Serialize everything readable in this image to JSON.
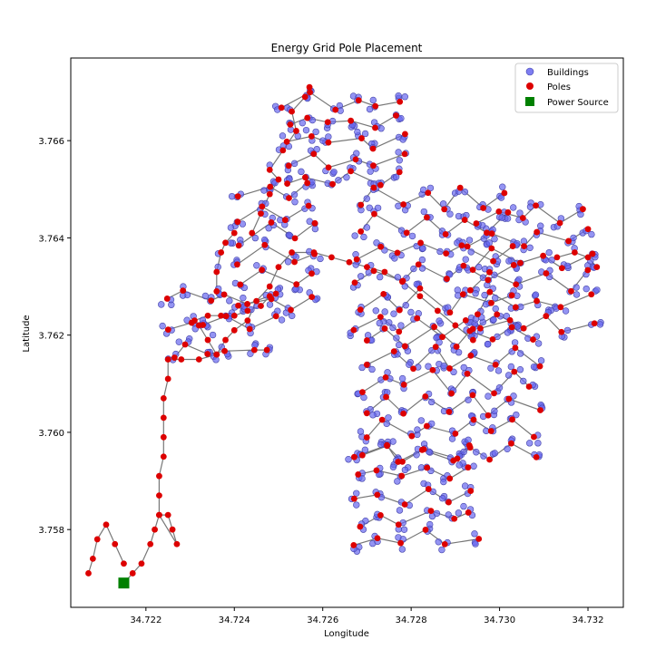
{
  "chart_data": {
    "type": "scatter",
    "title": "Energy Grid Pole Placement",
    "xlabel": "Longitude",
    "ylabel": "Latitude",
    "xlim": [
      34.7203,
      34.7328
    ],
    "ylim": [
      3.7564,
      3.7677
    ],
    "grid": false,
    "legend_position": "top-right",
    "x_ticks": [
      "34.722",
      "34.724",
      "34.726",
      "34.728",
      "34.730",
      "34.732"
    ],
    "x_tick_values": [
      34.722,
      34.724,
      34.726,
      34.728,
      34.73,
      34.732
    ],
    "y_ticks": [
      "3.758",
      "3.760",
      "3.762",
      "3.764",
      "3.766"
    ],
    "y_tick_values": [
      3.758,
      3.76,
      3.762,
      3.764,
      3.766
    ],
    "series": [
      {
        "name": "Buildings",
        "marker": "circle",
        "color": "#6666ee"
      },
      {
        "name": "Poles",
        "marker": "circle",
        "color": "#dd0000"
      },
      {
        "name": "Power Source",
        "marker": "square",
        "color": "#008000"
      }
    ],
    "power_source": [
      34.7215,
      3.7569
    ],
    "feeder_path": [
      [
        34.7215,
        3.7569
      ],
      [
        34.7217,
        3.7571
      ],
      [
        34.7219,
        3.7573
      ],
      [
        34.7221,
        3.7577
      ],
      [
        34.7222,
        3.758
      ],
      [
        34.7223,
        3.7583
      ],
      [
        34.7225,
        3.7583
      ],
      [
        34.7226,
        3.758
      ],
      [
        34.7227,
        3.7577
      ],
      [
        34.7223,
        3.7583
      ],
      [
        34.7223,
        3.7587
      ],
      [
        34.7223,
        3.7591
      ],
      [
        34.7224,
        3.7595
      ],
      [
        34.7224,
        3.7599
      ],
      [
        34.7224,
        3.7603
      ],
      [
        34.7224,
        3.7607
      ],
      [
        34.7225,
        3.7611
      ],
      [
        34.7225,
        3.7615
      ],
      [
        34.7228,
        3.7615
      ],
      [
        34.7232,
        3.7615
      ],
      [
        34.7236,
        3.7616
      ],
      [
        34.7238,
        3.7619
      ],
      [
        34.724,
        3.7621
      ],
      [
        34.7243,
        3.7623
      ],
      [
        34.7245,
        3.7627
      ],
      [
        34.7248,
        3.763
      ],
      [
        34.725,
        3.7634
      ],
      [
        34.7253,
        3.7637
      ],
      [
        34.7258,
        3.7637
      ],
      [
        34.7262,
        3.7636
      ],
      [
        34.7266,
        3.7635
      ],
      [
        34.727,
        3.7634
      ],
      [
        34.7274,
        3.7633
      ],
      [
        34.7278,
        3.7631
      ],
      [
        34.7282,
        3.7628
      ],
      [
        34.7286,
        3.7625
      ],
      [
        34.729,
        3.7622
      ],
      [
        34.7294,
        3.7619
      ]
    ],
    "west_loop": [
      [
        34.7236,
        3.7616
      ],
      [
        34.7234,
        3.7619
      ],
      [
        34.7232,
        3.7622
      ],
      [
        34.7231,
        3.7623
      ],
      [
        34.7234,
        3.7624
      ],
      [
        34.7237,
        3.7624
      ],
      [
        34.724,
        3.7624
      ],
      [
        34.7243,
        3.7625
      ],
      [
        34.7246,
        3.7626
      ],
      [
        34.7248,
        3.7628
      ]
    ],
    "sw_loop": [
      [
        34.7215,
        3.7573
      ],
      [
        34.7213,
        3.7577
      ],
      [
        34.7211,
        3.7581
      ],
      [
        34.7209,
        3.7578
      ],
      [
        34.7208,
        3.7574
      ],
      [
        34.7207,
        3.7571
      ]
    ],
    "north_spine": [
      [
        34.7244,
        3.7641
      ],
      [
        34.7246,
        3.7645
      ],
      [
        34.7248,
        3.7649
      ],
      [
        34.725,
        3.7652
      ],
      [
        34.7248,
        3.7654
      ],
      [
        34.7251,
        3.7658
      ],
      [
        34.7254,
        3.7662
      ],
      [
        34.7253,
        3.7666
      ],
      [
        34.7256,
        3.7669
      ],
      [
        34.7257,
        3.7671
      ]
    ],
    "west_branch": [
      [
        34.7236,
        3.7629
      ],
      [
        34.7236,
        3.7633
      ],
      [
        34.7237,
        3.7637
      ],
      [
        34.7238,
        3.7639
      ],
      [
        34.724,
        3.7641
      ]
    ],
    "clusters": [
      {
        "x": [
          34.7252,
          34.7278
        ],
        "y": [
          3.7652,
          3.7668
        ],
        "rows": 5,
        "cols": 6
      },
      {
        "x": [
          34.7242,
          34.7258
        ],
        "y": [
          3.7627,
          3.765
        ],
        "rows": 6,
        "cols": 4
      },
      {
        "x": [
          34.7268,
          34.7302
        ],
        "y": [
          3.7622,
          3.7648
        ],
        "rows": 6,
        "cols": 8
      },
      {
        "x": [
          34.7294,
          34.732
        ],
        "y": [
          3.7622,
          3.7645
        ],
        "rows": 6,
        "cols": 6
      },
      {
        "x": [
          34.727,
          34.7308
        ],
        "y": [
          3.7596,
          3.762
        ],
        "rows": 6,
        "cols": 9
      },
      {
        "x": [
          34.7268,
          34.7294
        ],
        "y": [
          3.7578,
          3.7596
        ],
        "rows": 5,
        "cols": 6
      },
      {
        "x": [
          34.7225,
          34.7248
        ],
        "y": [
          3.7617,
          3.7628
        ],
        "rows": 3,
        "cols": 6
      }
    ],
    "east_branch": [
      [
        34.7313,
        3.7636
      ],
      [
        34.7317,
        3.7637
      ],
      [
        34.732,
        3.7636
      ],
      [
        34.7322,
        3.7634
      ]
    ]
  }
}
